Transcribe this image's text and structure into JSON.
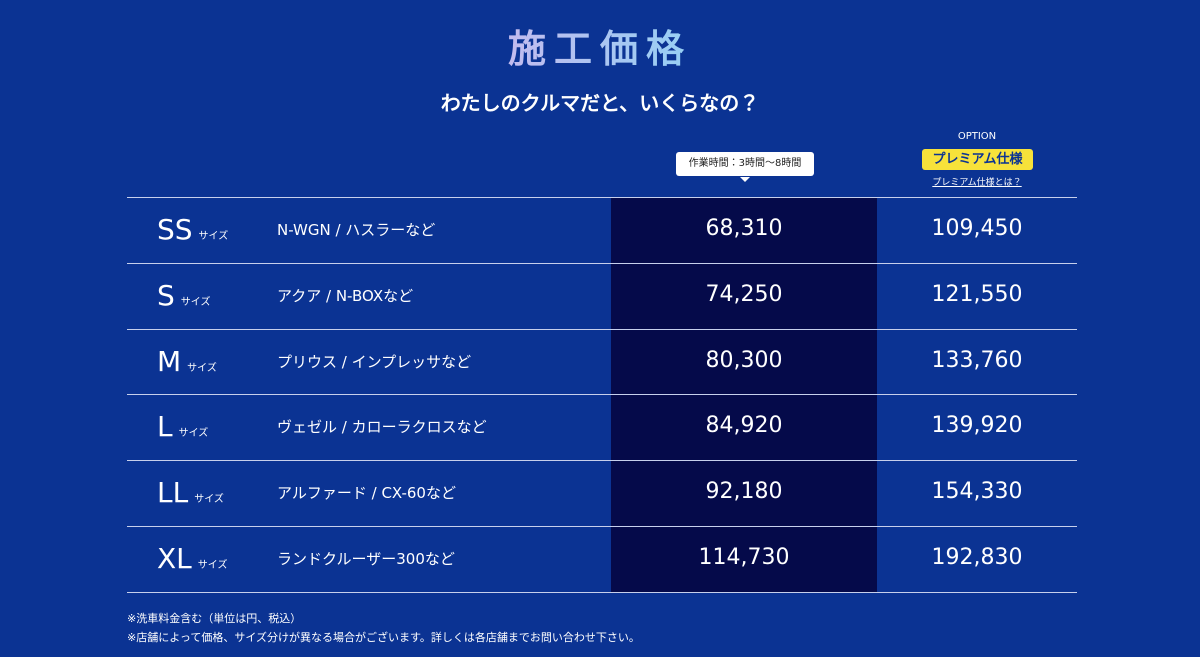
{
  "header": {
    "title": "施工価格",
    "subtitle": "わたしのクルマだと、いくらなの？"
  },
  "table": {
    "time_note": "作業時間：3時間〜8時間",
    "option_label": "OPTION",
    "premium_badge": "プレミアム仕様",
    "premium_link": "プレミアム仕様とは？",
    "rows": [
      {
        "size": "SS",
        "size_suffix": "サイズ",
        "models": "N-WGN / ハスラーなど",
        "price": "68,310",
        "premium_price": "109,450"
      },
      {
        "size": "S",
        "size_suffix": "サイズ",
        "models": "アクア / N-BOXなど",
        "price": "74,250",
        "premium_price": "121,550"
      },
      {
        "size": "M",
        "size_suffix": "サイズ",
        "models": "プリウス / インプレッサなど",
        "price": "80,300",
        "premium_price": "133,760"
      },
      {
        "size": "L",
        "size_suffix": "サイズ",
        "models": "ヴェゼル / カローラクロスなど",
        "price": "84,920",
        "premium_price": "139,920"
      },
      {
        "size": "LL",
        "size_suffix": "サイズ",
        "models": "アルファード / CX-60など",
        "price": "92,180",
        "premium_price": "154,330"
      },
      {
        "size": "XL",
        "size_suffix": "サイズ",
        "models": "ランドクルーザー300など",
        "price": "114,730",
        "premium_price": "192,830"
      }
    ]
  },
  "notes": [
    "※洗車料金含む（単位は円、税込）",
    "※店舗によって価格、サイズ分けが異なる場合がございます。詳しくは各店舗までお問い合わせ下さい。"
  ]
}
